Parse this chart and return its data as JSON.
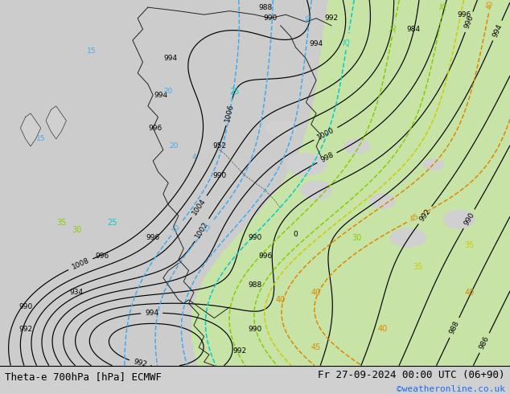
{
  "title_left": "Theta-e 700hPa [hPa] ECMWF",
  "title_right": "Fr 27-09-2024 00:00 UTC (06+90)",
  "copyright": "©weatheronline.co.uk",
  "bg_color": "#d0d0d0",
  "land_gray": "#c8c8c8",
  "green_fill": "#c8e8a0",
  "white_fill": "#e8e8e8",
  "bottom_bar_color": "#ffffff",
  "bottom_bar_height": 0.072,
  "title_fontsize": 9,
  "copyright_fontsize": 8,
  "copyright_color": "#1a6aff",
  "label_color": "#000000",
  "isobar_color": "#000000",
  "theta_blue_color": "#44aaee",
  "theta_cyan_color": "#00cccc",
  "theta_lgreen_color": "#88cc00",
  "theta_yellow_color": "#cccc00",
  "theta_orange_color": "#dd8800",
  "isobar_linewidth": 0.85,
  "theta_linewidth": 1.1,
  "figwidth": 6.34,
  "figheight": 4.9
}
